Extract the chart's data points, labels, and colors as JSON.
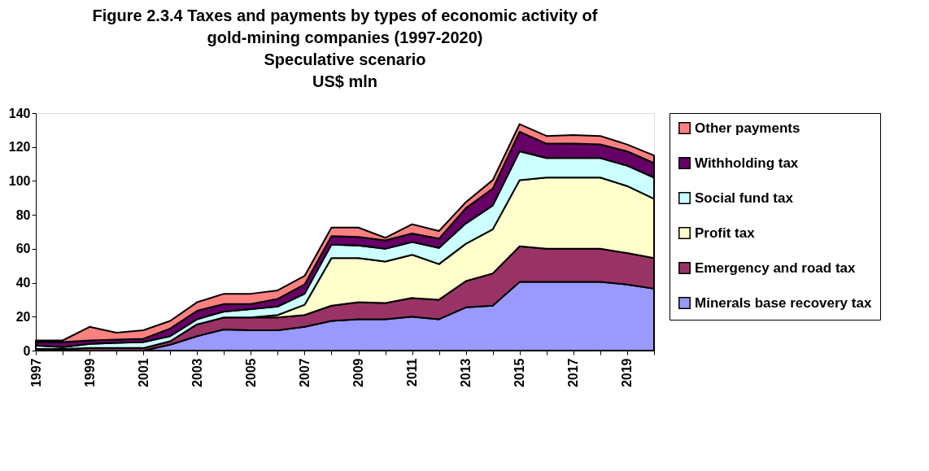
{
  "chart_data": {
    "type": "area",
    "stacked": true,
    "title": "Figure 2.3.4  Taxes and payments by types of economic activity of gold-mining companies (1997-2020)",
    "subtitle": "Speculative scenario\nUS$ mln",
    "x": [
      1997,
      1998,
      1999,
      2000,
      2001,
      2002,
      2003,
      2004,
      2005,
      2006,
      2007,
      2008,
      2009,
      2010,
      2011,
      2012,
      2013,
      2014,
      2015,
      2016,
      2017,
      2018,
      2019,
      2020
    ],
    "xlim": [
      1997,
      2020
    ],
    "xticks": [
      1997,
      {
        "value": 1998,
        "label": null
      },
      1999,
      {
        "value": 2000,
        "label": null
      },
      2001,
      {
        "value": 2002,
        "label": null
      },
      2003,
      {
        "value": 2004,
        "label": null
      },
      2005,
      {
        "value": 2006,
        "label": null
      },
      2007,
      {
        "value": 2008,
        "label": null
      },
      2009,
      {
        "value": 2010,
        "label": null
      },
      2011,
      {
        "value": 2012,
        "label": null
      },
      2013,
      {
        "value": 2014,
        "label": null
      },
      2015,
      {
        "value": 2016,
        "label": null
      },
      2017,
      {
        "value": 2018,
        "label": null
      },
      2019,
      {
        "value": 2020,
        "label": null
      }
    ],
    "ylim": [
      0,
      140
    ],
    "yticks": [
      0,
      20,
      40,
      60,
      80,
      100,
      120,
      140
    ],
    "grid": false,
    "legend": "right",
    "series": [
      {
        "name": "Minerals base recovery tax",
        "color": "#9999ff",
        "values": [
          0,
          0,
          0,
          0,
          0,
          3.5,
          8.5,
          12.5,
          12,
          12,
          14,
          17.5,
          18.5,
          18.5,
          20,
          18.5,
          25.5,
          26.5,
          40.5,
          40.5,
          40.5,
          40.5,
          39,
          36.5
        ]
      },
      {
        "name": "Emergency and road tax",
        "color": "#993366",
        "values": [
          1,
          1,
          1.5,
          1.5,
          1.5,
          2,
          7,
          7,
          7.5,
          7.5,
          7,
          9,
          10,
          9.5,
          11,
          11.5,
          15.5,
          19,
          21,
          19.5,
          19.5,
          19.5,
          18.5,
          18
        ]
      },
      {
        "name": "Profit tax",
        "color": "#ffffcc",
        "values": [
          0,
          0,
          0,
          0,
          0,
          0,
          0,
          0,
          0,
          1.5,
          6,
          28,
          26,
          24.5,
          25.5,
          21,
          22,
          26,
          39,
          42,
          42,
          42,
          39.5,
          35
        ]
      },
      {
        "name": "Social fund tax",
        "color": "#ccffff",
        "values": [
          2,
          1,
          2.5,
          3,
          3.5,
          3,
          3,
          3.5,
          5,
          5,
          6.5,
          8,
          7.5,
          7.5,
          7.5,
          9.5,
          12,
          14,
          17,
          11.5,
          11.5,
          11.5,
          12,
          12.5
        ]
      },
      {
        "name": "Withholding tax",
        "color": "#660066",
        "values": [
          2,
          3,
          2,
          2,
          2,
          4.5,
          5,
          4.5,
          3,
          4.5,
          5.5,
          5,
          5,
          5,
          5,
          5.5,
          9,
          10,
          11.5,
          8.5,
          8.5,
          8,
          8.5,
          8.5
        ]
      },
      {
        "name": "Other payments",
        "color": "#ff8080",
        "values": [
          1,
          1,
          8,
          4,
          5,
          4.5,
          5,
          6,
          6,
          5,
          5,
          5,
          5.5,
          1.5,
          5.5,
          4.5,
          3.5,
          5,
          4.5,
          4.5,
          5,
          5,
          4,
          4.5
        ]
      }
    ]
  }
}
